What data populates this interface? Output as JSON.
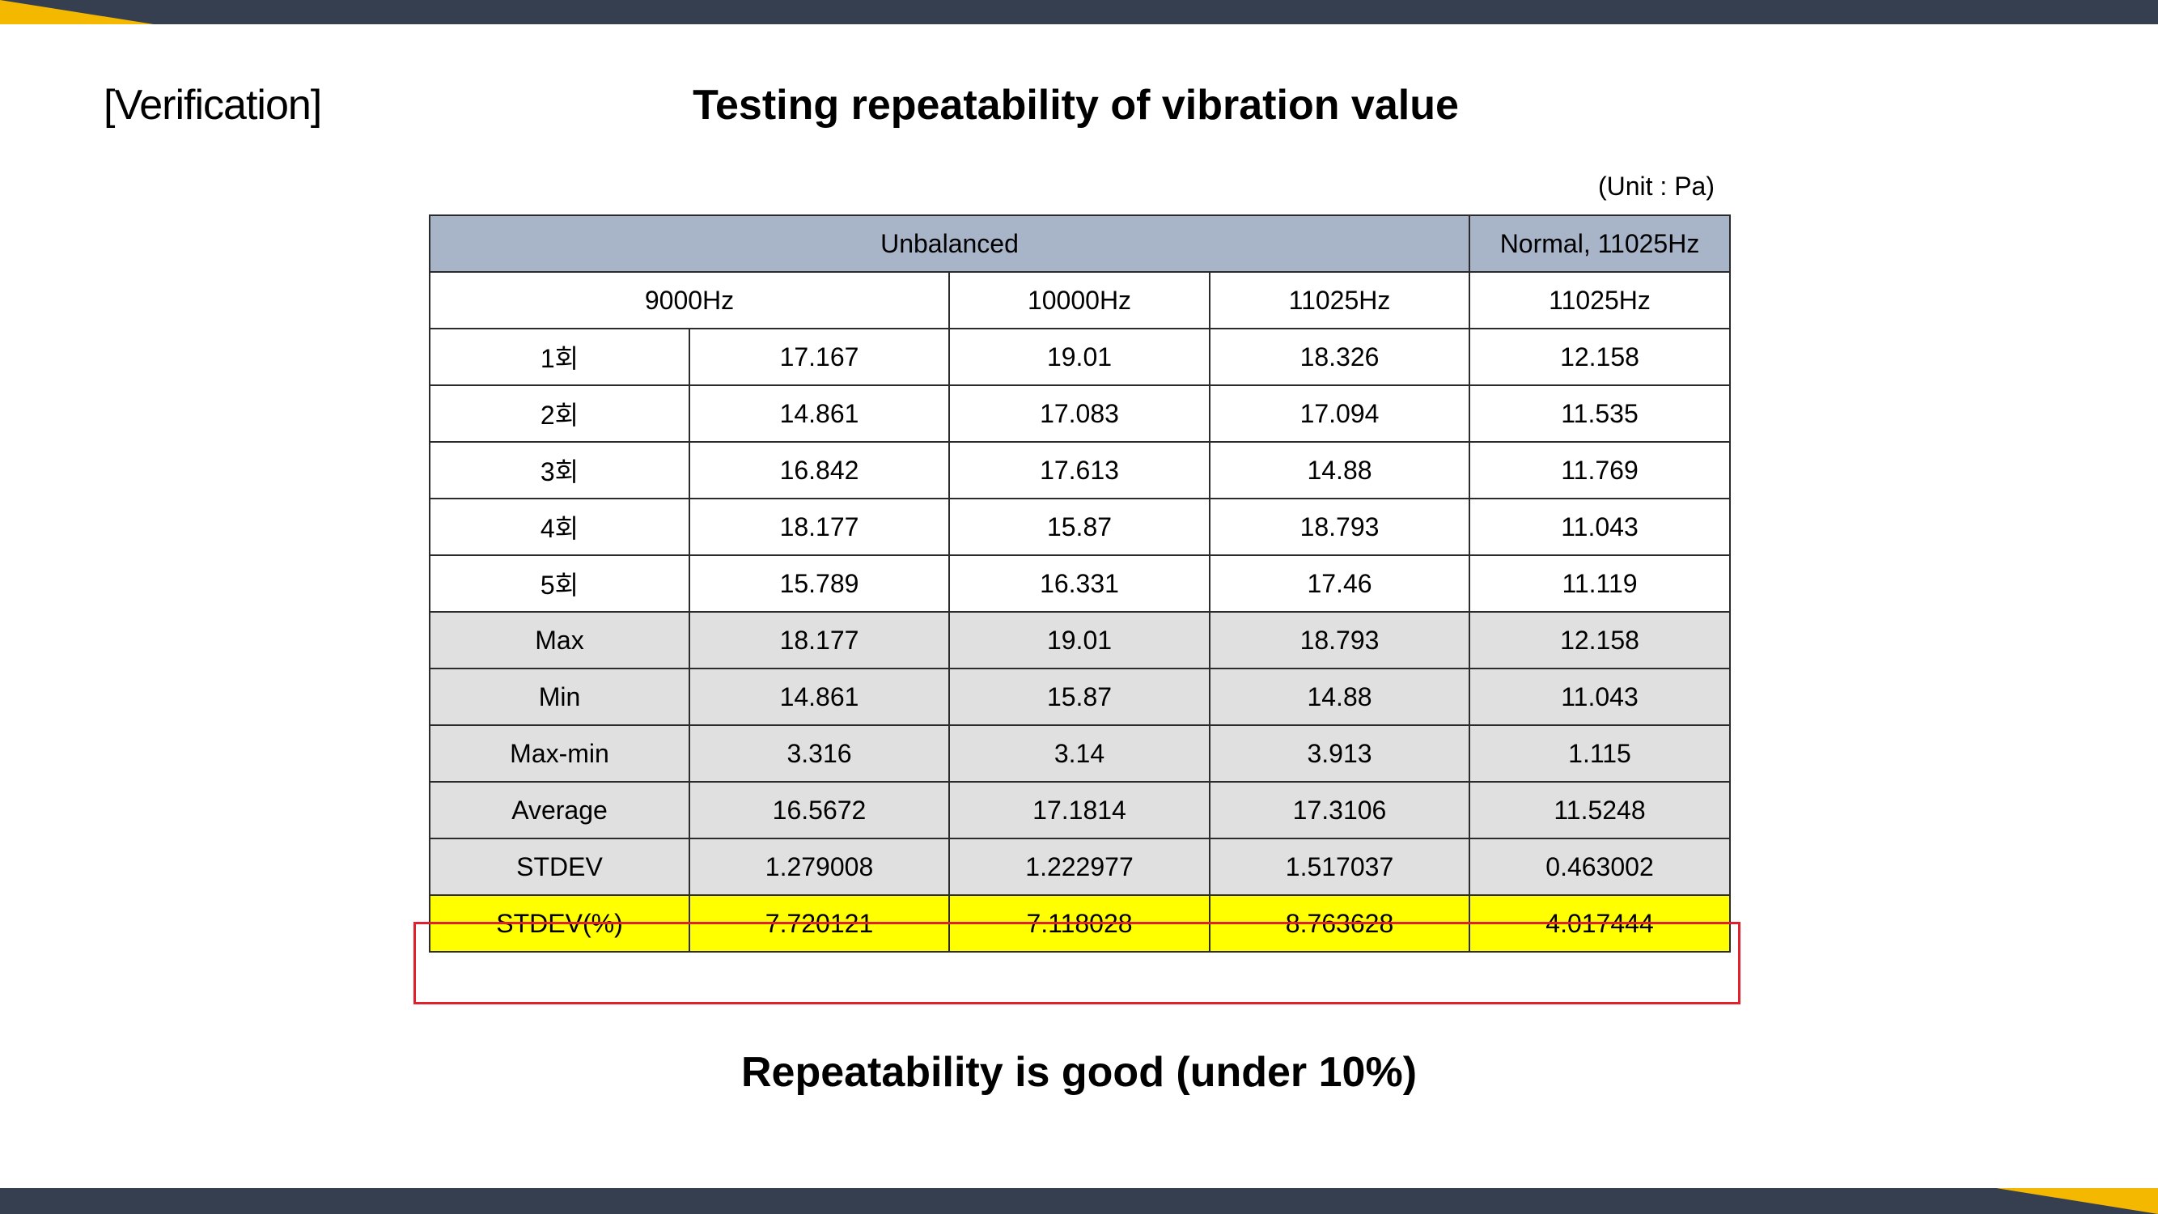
{
  "section_label": "[Verification]",
  "title": "Testing repeatability of vibration value",
  "unit_note": "(Unit : Pa)",
  "table": {
    "group_headers": [
      "Unbalanced",
      "Normal, 11025Hz"
    ],
    "freq_headers": [
      "9000Hz",
      "10000Hz",
      "11025Hz",
      "11025Hz"
    ],
    "rows": [
      {
        "label": "1회",
        "values": [
          "17.167",
          "19.01",
          "18.326",
          "12.158"
        ]
      },
      {
        "label": "2회",
        "values": [
          "14.861",
          "17.083",
          "17.094",
          "11.535"
        ]
      },
      {
        "label": "3회",
        "values": [
          "16.842",
          "17.613",
          "14.88",
          "11.769"
        ]
      },
      {
        "label": "4회",
        "values": [
          "18.177",
          "15.87",
          "18.793",
          "11.043"
        ]
      },
      {
        "label": "5회",
        "values": [
          "15.789",
          "16.331",
          "17.46",
          "11.119"
        ]
      },
      {
        "label": "Max",
        "values": [
          "18.177",
          "19.01",
          "18.793",
          "12.158"
        ]
      },
      {
        "label": "Min",
        "values": [
          "14.861",
          "15.87",
          "14.88",
          "11.043"
        ]
      },
      {
        "label": "Max-min",
        "values": [
          "3.316",
          "3.14",
          "3.913",
          "1.115"
        ]
      },
      {
        "label": "Average",
        "values": [
          "16.5672",
          "17.1814",
          "17.3106",
          "11.5248"
        ]
      },
      {
        "label": "STDEV",
        "values": [
          "1.279008",
          "1.222977",
          "1.517037",
          "0.463002"
        ]
      },
      {
        "label": "STDEV(%)",
        "values": [
          "7.720121",
          "7.118028",
          "8.763628",
          "4.017444"
        ]
      }
    ]
  },
  "conclusion": "Repeatability is good (under 10%)",
  "colors": {
    "frame": "#353f50",
    "accent": "#f5b800",
    "header_fill": "#a8b4c8",
    "stat_fill": "#e0e0e0",
    "highlight_fill": "#ffff00",
    "highlight_border": "#e0202a"
  }
}
